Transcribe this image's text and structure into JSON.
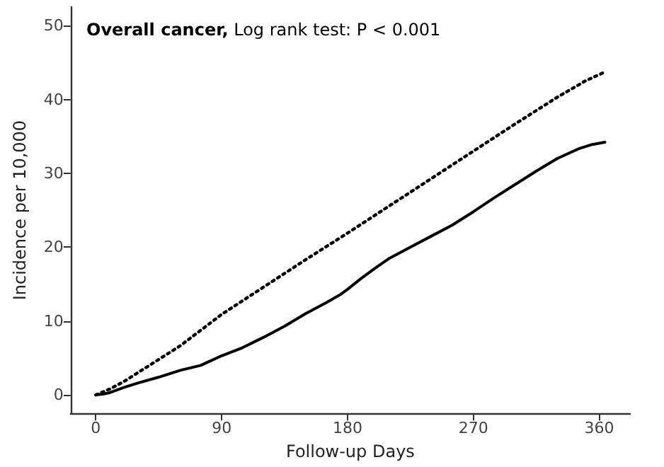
{
  "chart_data": {
    "type": "line",
    "title": "Overall cancer, Log rank test: P < 0.001",
    "xlabel": "Follow-up Days",
    "ylabel": "Incidence per 10,000",
    "xlim": [
      -18,
      382
    ],
    "xticks": [
      0,
      90,
      180,
      270,
      360
    ],
    "ylim": [
      -2.5,
      52.5
    ],
    "yticks": [
      0,
      10,
      20,
      30,
      40,
      50
    ],
    "grid": false,
    "marker": "none",
    "series": [
      {
        "color": "#000000",
        "line_style": "dotted",
        "x": [
          0,
          10,
          20,
          40,
          60,
          90,
          120,
          150,
          180,
          210,
          240,
          270,
          300,
          330,
          350,
          364
        ],
        "values": [
          0,
          0.8,
          1.8,
          4.2,
          6.6,
          10.9,
          14.6,
          18.3,
          21.9,
          25.6,
          29.3,
          33,
          36.7,
          40.3,
          42.5,
          43.7
        ]
      },
      {
        "color": "#000000",
        "line_style": "solid",
        "x": [
          0,
          5,
          10,
          20,
          30,
          45,
          60,
          75,
          90,
          105,
          120,
          135,
          150,
          165,
          175,
          180,
          190,
          200,
          210,
          225,
          240,
          255,
          270,
          285,
          300,
          315,
          330,
          345,
          355,
          364
        ],
        "values": [
          0,
          0.1,
          0.3,
          1,
          1.6,
          2.4,
          3.3,
          4,
          5.3,
          6.4,
          7.8,
          9.3,
          11,
          12.5,
          13.6,
          14.3,
          15.8,
          17.2,
          18.5,
          20,
          21.5,
          23,
          24.8,
          26.7,
          28.5,
          30.3,
          32,
          33.3,
          33.9,
          34.2
        ]
      }
    ]
  }
}
